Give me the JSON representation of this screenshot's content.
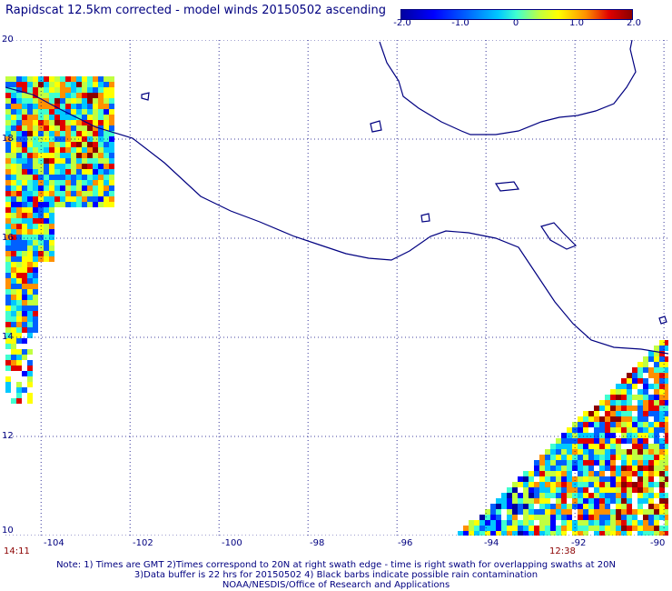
{
  "title": "Rapidscat 12.5km corrected - model winds 20150502 ascending",
  "colorbar": {
    "ticks": [
      "-2.0",
      "-1.0",
      "0",
      "1.0",
      "2.0"
    ],
    "tick_values": [
      -2.0,
      -1.0,
      0.0,
      1.0,
      2.0
    ],
    "range": [
      -2.0,
      2.0
    ]
  },
  "axes": {
    "lat_labels": [
      "20",
      "18",
      "16",
      "14",
      "12",
      "10"
    ],
    "lat_values": [
      20,
      18,
      16,
      14,
      12,
      10
    ],
    "lon_labels": [
      "-104",
      "-102",
      "-100",
      "-98",
      "-96",
      "-94",
      "-92",
      "-90"
    ],
    "lon_values": [
      -104,
      -102,
      -100,
      -98,
      -96,
      -94,
      -92,
      -90
    ],
    "lon_range": [
      -104.8,
      -89.9
    ],
    "lat_range": [
      10,
      20
    ],
    "grid": "dotted"
  },
  "times": {
    "left": "14:11",
    "right": "12:38"
  },
  "notes": [
    "Note: 1) Times are GMT 2)Times correspond to 20N at right swath edge - time is right swath for overlapping swaths at 20N",
    "3)Data buffer is 22 hrs for 20150502 4) Black barbs indicate possible rain contamination",
    "NOAA/NESDIS/Office of Research and Applications"
  ],
  "colors": {
    "text": "#000080",
    "coastline": "#000080",
    "grid": "#000080",
    "time_label": "#8b0000",
    "palette": [
      "#0000a0",
      "#0000ff",
      "#0060ff",
      "#00c8ff",
      "#40ffd0",
      "#c0ff40",
      "#ffff00",
      "#ff9000",
      "#e00000",
      "#8b0000"
    ]
  }
}
